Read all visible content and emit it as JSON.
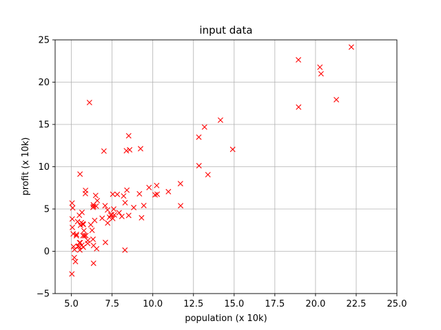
{
  "chart_data": {
    "type": "scatter",
    "title": "input data",
    "xlabel": "population (x 10k)",
    "ylabel": "profit (x 10k)",
    "xlim": [
      4,
      25
    ],
    "ylim": [
      -5,
      25
    ],
    "xticks": [
      5.0,
      7.5,
      10.0,
      12.5,
      15.0,
      17.5,
      20.0,
      22.5,
      25.0
    ],
    "xtick_labels": [
      "5.0",
      "7.5",
      "10.0",
      "12.5",
      "15.0",
      "17.5",
      "20.0",
      "22.5",
      "25.0"
    ],
    "yticks": [
      -5,
      0,
      5,
      10,
      15,
      20,
      25
    ],
    "ytick_labels": [
      "−5",
      "0",
      "5",
      "10",
      "15",
      "20",
      "25"
    ],
    "grid": true,
    "marker": "x",
    "color": "#ff0000",
    "series": [
      {
        "points": [
          [
            6.11,
            17.59
          ],
          [
            5.53,
            9.13
          ],
          [
            8.52,
            13.66
          ],
          [
            7.0,
            11.85
          ],
          [
            5.86,
            6.82
          ],
          [
            8.38,
            11.89
          ],
          [
            7.48,
            4.35
          ],
          [
            8.58,
            12.0
          ],
          [
            6.49,
            6.6
          ],
          [
            5.05,
            3.82
          ],
          [
            5.71,
            3.25
          ],
          [
            14.16,
            15.51
          ],
          [
            5.73,
            3.16
          ],
          [
            8.41,
            7.23
          ],
          [
            5.64,
            0.72
          ],
          [
            5.38,
            3.51
          ],
          [
            6.37,
            5.3
          ],
          [
            5.13,
            0.56
          ],
          [
            6.43,
            3.65
          ],
          [
            7.07,
            5.39
          ],
          [
            6.19,
            3.14
          ],
          [
            20.27,
            21.77
          ],
          [
            5.49,
            4.26
          ],
          [
            6.33,
            5.19
          ],
          [
            5.56,
            3.08
          ],
          [
            18.95,
            22.64
          ],
          [
            12.83,
            13.5
          ],
          [
            10.96,
            7.05
          ],
          [
            13.18,
            14.69
          ],
          [
            22.2,
            24.15
          ],
          [
            5.25,
            -1.22
          ],
          [
            6.59,
            5.99
          ],
          [
            9.25,
            12.13
          ],
          [
            5.89,
            1.85
          ],
          [
            8.21,
            6.54
          ],
          [
            7.93,
            4.56
          ],
          [
            8.1,
            4.12
          ],
          [
            5.61,
            3.39
          ],
          [
            12.84,
            10.12
          ],
          [
            6.35,
            5.5
          ],
          [
            5.41,
            0.56
          ],
          [
            6.89,
            3.91
          ],
          [
            11.71,
            5.39
          ],
          [
            5.77,
            2.44
          ],
          [
            7.82,
            6.73
          ],
          [
            7.09,
            1.05
          ],
          [
            5.08,
            5.13
          ],
          [
            5.8,
            1.84
          ],
          [
            11.7,
            8.0
          ],
          [
            5.54,
            1.02
          ],
          [
            7.54,
            6.75
          ],
          [
            5.31,
            1.84
          ],
          [
            7.42,
            4.29
          ],
          [
            7.6,
            4.99
          ],
          [
            6.33,
            1.42
          ],
          [
            6.36,
            -1.42
          ],
          [
            6.27,
            2.48
          ],
          [
            5.65,
            4.6
          ],
          [
            9.31,
            3.96
          ],
          [
            9.45,
            5.41
          ],
          [
            8.83,
            5.17
          ],
          [
            5.18,
            -0.74
          ],
          [
            21.28,
            17.93
          ],
          [
            14.91,
            12.05
          ],
          [
            18.96,
            17.05
          ],
          [
            7.22,
            4.89
          ],
          [
            8.3,
            5.74
          ],
          [
            10.24,
            7.78
          ],
          [
            5.5,
            1.02
          ],
          [
            20.34,
            20.99
          ],
          [
            10.14,
            6.68
          ],
          [
            7.34,
            4.03
          ],
          [
            6.01,
            1.28
          ],
          [
            7.23,
            3.34
          ],
          [
            5.03,
            -2.68
          ],
          [
            6.55,
            0.3
          ],
          [
            7.54,
            3.88
          ],
          [
            5.04,
            5.7
          ],
          [
            10.27,
            6.75
          ],
          [
            5.11,
            2.06
          ],
          [
            5.73,
            0.48
          ],
          [
            5.19,
            0.2
          ],
          [
            6.36,
            0.68
          ],
          [
            9.77,
            7.54
          ],
          [
            6.52,
            5.34
          ],
          [
            8.52,
            4.24
          ],
          [
            9.18,
            6.8
          ],
          [
            6.0,
            0.93
          ],
          [
            5.52,
            0.15
          ],
          [
            5.06,
            2.82
          ],
          [
            5.71,
            1.85
          ],
          [
            7.64,
            4.3
          ],
          [
            5.87,
            7.2
          ],
          [
            5.31,
            1.99
          ],
          [
            8.29,
            0.14
          ],
          [
            13.39,
            9.06
          ],
          [
            5.44,
            0.62
          ]
        ]
      }
    ]
  }
}
